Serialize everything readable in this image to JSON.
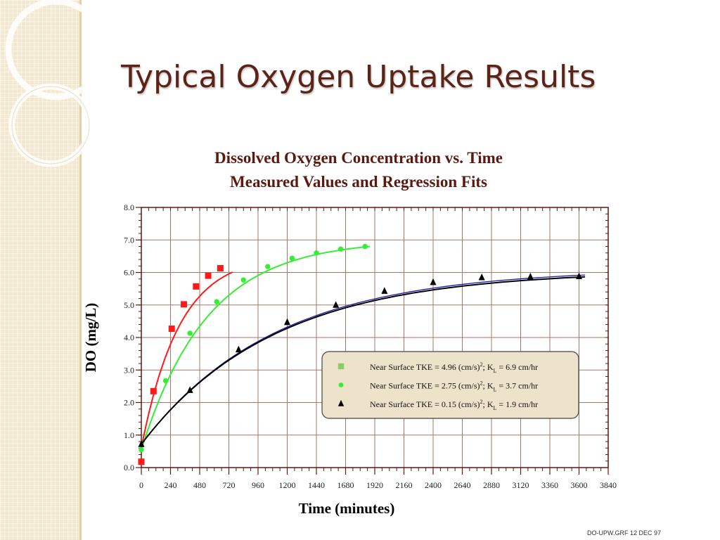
{
  "slide": {
    "title": "Typical Oxygen Uptake Results",
    "footer": "DO-UPW.GRF  12 DEC 97"
  },
  "colors": {
    "title": "#5b2417",
    "chart_title": "#5b1a10",
    "axis": "#5b1a10",
    "grid": "#a07868",
    "legend_bg": "#ede3cb",
    "series": [
      "#ff1a1a",
      "#33ee33",
      "#000000"
    ],
    "fit_extra": "#1a1aaa"
  },
  "chart_data": {
    "type": "line",
    "title": "Dissolved Oxygen Concentration vs. Time",
    "subtitle": "Measured Values and Regression Fits",
    "xlabel": "Time (minutes)",
    "ylabel": "DO (mg/L)",
    "xlim": [
      0,
      3840
    ],
    "ylim": [
      0,
      8
    ],
    "xticks": [
      0,
      240,
      480,
      720,
      960,
      1200,
      1440,
      1680,
      1920,
      2160,
      2400,
      2640,
      2880,
      3120,
      3360,
      3600,
      3840
    ],
    "yticks": [
      "0.0",
      "1.0",
      "2.0",
      "3.0",
      "4.0",
      "5.0",
      "6.0",
      "7.0",
      "8.0"
    ],
    "grid": true,
    "legend_position": "center-right",
    "series": [
      {
        "name": "Near Surface TKE = 4.96 (cm/s)²; KL = 6.9 cm/hr",
        "label": {
          "pre": "Near Surface TKE = 4.96 (cm/s)",
          "sup": "2",
          "mid": "; K",
          "sub": "L",
          "post": " = 6.9 cm/hr"
        },
        "color": "#ff1a1a",
        "marker": "square",
        "legend_marker_color": "#88cc66",
        "points": [
          [
            0,
            0.18
          ],
          [
            100,
            2.35
          ],
          [
            250,
            4.27
          ],
          [
            350,
            5.02
          ],
          [
            450,
            5.57
          ],
          [
            550,
            5.9
          ],
          [
            650,
            6.13
          ]
        ],
        "fit": {
          "cs": 6.55,
          "c0": 0.6,
          "k": 0.0032,
          "t_end": 750
        }
      },
      {
        "name": "Near Surface TKE = 2.75 (cm/s)²; KL = 3.7 cm/hr",
        "label": {
          "pre": "Near Surface TKE = 2.75 (cm/s)",
          "sup": "2",
          "mid": "; K",
          "sub": "L",
          "post": " = 3.7 cm/hr"
        },
        "color": "#33ee33",
        "marker": "circle",
        "legend_marker_color": "#33ee33",
        "points": [
          [
            0,
            0.55
          ],
          [
            200,
            2.67
          ],
          [
            400,
            4.13
          ],
          [
            620,
            5.1
          ],
          [
            840,
            5.77
          ],
          [
            1040,
            6.18
          ],
          [
            1240,
            6.44
          ],
          [
            1440,
            6.6
          ],
          [
            1640,
            6.72
          ],
          [
            1840,
            6.8
          ]
        ],
        "fit": {
          "cs": 7.0,
          "c0": 0.55,
          "k": 0.00185,
          "t_end": 1880
        }
      },
      {
        "name": "Near Surface TKE = 0.15 (cm/s)²; KL = 1.9 cm/hr",
        "label": {
          "pre": "Near Surface TKE = 0.15 (cm/s)",
          "sup": "2",
          "mid": "; K",
          "sub": "L",
          "post": " = 1.9 cm/hr"
        },
        "color": "#000000",
        "marker": "triangle",
        "legend_marker_color": "#000000",
        "points": [
          [
            0,
            0.72
          ],
          [
            400,
            2.38
          ],
          [
            800,
            3.63
          ],
          [
            1200,
            4.47
          ],
          [
            1600,
            5.0
          ],
          [
            2000,
            5.43
          ],
          [
            2400,
            5.7
          ],
          [
            2800,
            5.85
          ],
          [
            3200,
            5.87
          ],
          [
            3600,
            5.88
          ]
        ],
        "fit": {
          "cs": 6.05,
          "c0": 0.72,
          "k": 0.00092,
          "t_end": 3650
        }
      }
    ]
  }
}
